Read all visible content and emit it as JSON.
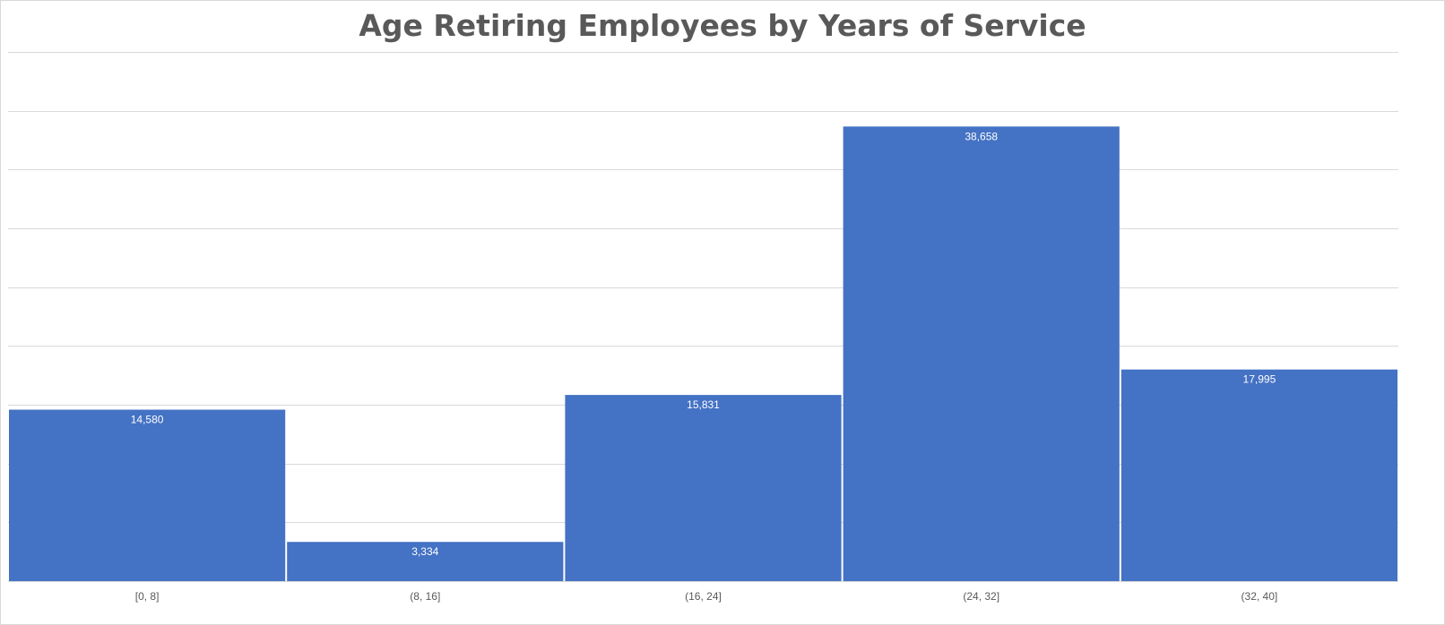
{
  "chart_data": {
    "type": "bar",
    "title": "Age Retiring Employees by Years of Service",
    "xlabel": "",
    "ylabel": "",
    "categories": [
      "[0, 8]",
      "(8, 16]",
      "(16, 24]",
      "(24, 32]",
      "(32, 40]"
    ],
    "values": [
      14580,
      3334,
      15831,
      38658,
      17995
    ],
    "data_labels": [
      "14,580",
      "3,334",
      "15,831",
      "38,658",
      "17,995"
    ],
    "ylim": [
      0,
      45000
    ],
    "y_gridline_step": 5000,
    "grid": true,
    "y_axis_labels_shown": false,
    "bar_color": "#4472C4",
    "gridline_color": "#d9d9d9",
    "label_color": "#ffffff",
    "tick_label_color": "#595959",
    "title_color": "#595959"
  }
}
